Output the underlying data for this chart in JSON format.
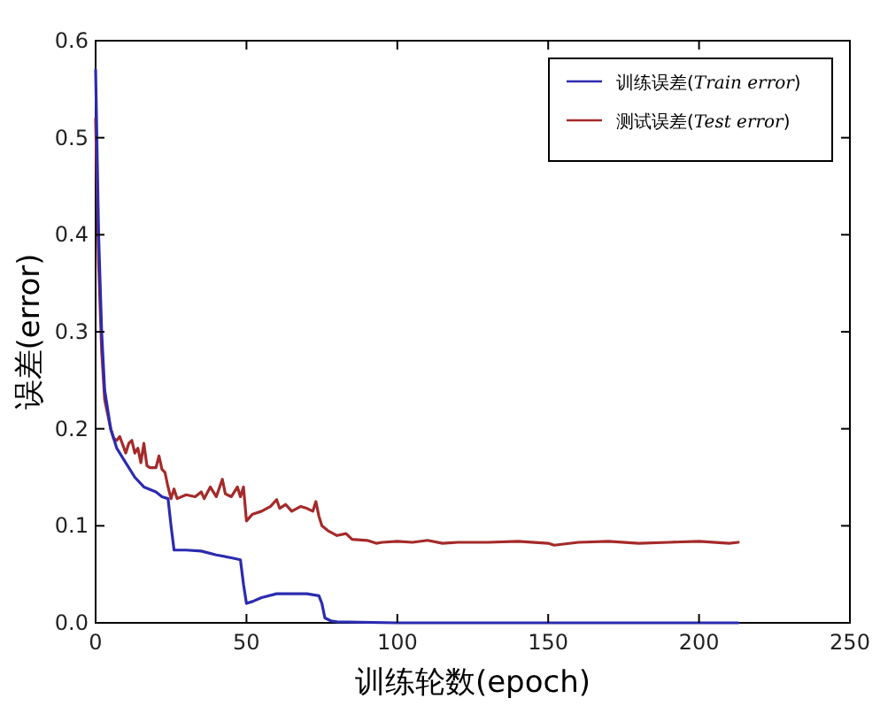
{
  "chart_data": {
    "type": "line",
    "xlabel": "训练轮数(epoch)",
    "ylabel": "误差(error)",
    "legend": "top right",
    "grid": false,
    "xlim": [
      0,
      250
    ],
    "xticks": [
      0,
      50,
      100,
      150,
      200,
      250
    ],
    "ylim": [
      0,
      0.6
    ],
    "yticks": [
      {
        "value": 0,
        "label": "0.0"
      },
      {
        "value": 0.1,
        "label": "0.1"
      },
      {
        "value": 0.2,
        "label": "0.2"
      },
      {
        "value": 0.3,
        "label": "0.3"
      },
      {
        "value": 0.4,
        "label": "0.4"
      },
      {
        "value": 0.5,
        "label": "0.5"
      },
      {
        "value": 0.6,
        "label": "0.6"
      }
    ],
    "series": [
      {
        "name": "训练误差(*Train error*)",
        "color": "#2b2bb0",
        "x": [
          0,
          1,
          2,
          3,
          5,
          7,
          10,
          13,
          16,
          20,
          22,
          24,
          25,
          26,
          30,
          35,
          40,
          45,
          48,
          49,
          50,
          52,
          55,
          60,
          65,
          70,
          74,
          75,
          76,
          78,
          80,
          100,
          150,
          213
        ],
        "values": [
          0.57,
          0.4,
          0.3,
          0.24,
          0.2,
          0.18,
          0.165,
          0.15,
          0.14,
          0.135,
          0.13,
          0.128,
          0.1,
          0.075,
          0.075,
          0.074,
          0.07,
          0.067,
          0.065,
          0.04,
          0.02,
          0.022,
          0.026,
          0.03,
          0.03,
          0.03,
          0.028,
          0.02,
          0.005,
          0.002,
          0.001,
          0,
          0,
          0
        ]
      },
      {
        "name": "测试误差(*Test error*)",
        "color": "#a52a2a",
        "x": [
          0,
          1,
          2,
          3,
          5,
          6,
          7,
          8,
          10,
          11,
          12,
          13,
          14,
          15,
          16,
          17,
          18,
          20,
          21,
          22,
          23,
          24,
          25,
          26,
          27,
          30,
          33,
          35,
          36,
          38,
          40,
          42,
          43,
          45,
          47,
          48,
          49,
          50,
          52,
          55,
          58,
          60,
          61,
          63,
          65,
          68,
          70,
          72,
          73,
          74,
          75,
          77,
          80,
          83,
          85,
          90,
          93,
          95,
          100,
          105,
          110,
          115,
          120,
          130,
          140,
          150,
          152,
          160,
          170,
          180,
          190,
          200,
          210,
          213
        ],
        "values": [
          0.52,
          0.37,
          0.28,
          0.23,
          0.2,
          0.19,
          0.188,
          0.192,
          0.175,
          0.185,
          0.188,
          0.175,
          0.18,
          0.165,
          0.185,
          0.162,
          0.16,
          0.16,
          0.172,
          0.158,
          0.155,
          0.14,
          0.128,
          0.138,
          0.128,
          0.132,
          0.13,
          0.135,
          0.128,
          0.14,
          0.13,
          0.148,
          0.133,
          0.13,
          0.14,
          0.13,
          0.14,
          0.105,
          0.112,
          0.115,
          0.12,
          0.127,
          0.118,
          0.122,
          0.115,
          0.12,
          0.118,
          0.115,
          0.125,
          0.11,
          0.1,
          0.095,
          0.09,
          0.092,
          0.086,
          0.085,
          0.082,
          0.083,
          0.084,
          0.083,
          0.085,
          0.082,
          0.083,
          0.083,
          0.084,
          0.082,
          0.08,
          0.083,
          0.084,
          0.082,
          0.083,
          0.084,
          0.082,
          0.083
        ]
      }
    ]
  }
}
